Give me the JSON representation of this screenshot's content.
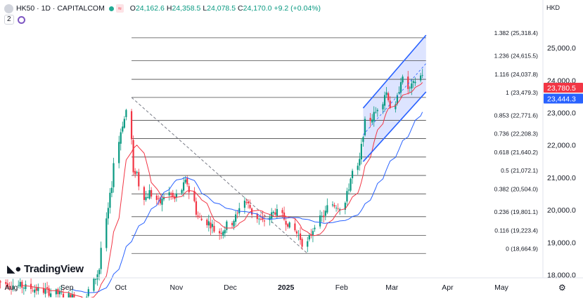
{
  "header": {
    "symbol": "HK50 · 1D · CAPITALCOM",
    "open_label": "O",
    "open": "24,162.6",
    "high_label": "H",
    "high": "24,358.5",
    "low_label": "L",
    "low": "24,078.5",
    "close_label": "C",
    "close": "24,170.0",
    "change": "+9.2 (+0.04%)",
    "indicator_count": "2",
    "currency": "HKD"
  },
  "logo": {
    "text": "TradingView"
  },
  "colors": {
    "up": "#089981",
    "down": "#f23645",
    "ma_fast": "#f23645",
    "ma_slow": "#2962ff",
    "channel": "#2962ff",
    "channel_fill": "#d4ddff",
    "fib": "#4a4a4a",
    "trend": "#787b86"
  },
  "chart_data": {
    "type": "candlestick",
    "y_axis": {
      "ticks": [
        {
          "value": 18000,
          "label": "18,000.0"
        },
        {
          "value": 19000,
          "label": "19,000.0"
        },
        {
          "value": 20000,
          "label": "20,000.0"
        },
        {
          "value": 21000,
          "label": "21,000.0"
        },
        {
          "value": 22000,
          "label": "22,000.0"
        },
        {
          "value": 23000,
          "label": "23,000.0"
        },
        {
          "value": 24000,
          "label": "24,000.0"
        },
        {
          "value": 25000,
          "label": "25,000.0"
        }
      ]
    },
    "x_axis": {
      "ticks": [
        {
          "label": "Aug",
          "x": "2024-08-01",
          "bold": false
        },
        {
          "label": "Sep",
          "x": "2024-09-01",
          "bold": false
        },
        {
          "label": "Oct",
          "x": "2024-10-01",
          "bold": false
        },
        {
          "label": "Nov",
          "x": "2024-11-01",
          "bold": false
        },
        {
          "label": "Dec",
          "x": "2024-12-01",
          "bold": false
        },
        {
          "label": "2025",
          "x": "2025-01-01",
          "bold": true
        },
        {
          "label": "Feb",
          "x": "2025-02-01",
          "bold": false
        },
        {
          "label": "Mar",
          "x": "2025-03-01",
          "bold": false
        },
        {
          "label": "Apr",
          "x": "2025-04-01",
          "bold": false
        },
        {
          "label": "May",
          "x": "2025-05-01",
          "bold": false
        }
      ]
    },
    "price_labels": [
      {
        "value": 23780.5,
        "label": "23,780.5",
        "color": "#f23645"
      },
      {
        "value": 23444.3,
        "label": "23,444.3",
        "color": "#2962ff"
      }
    ],
    "fib_levels": [
      {
        "ratio": "1.382",
        "value": 25318.4,
        "label": "1.382 (25,318.4)"
      },
      {
        "ratio": "1.236",
        "value": 24615.5,
        "label": "1.236 (24,615.5)"
      },
      {
        "ratio": "1.116",
        "value": 24037.8,
        "label": "1.116 (24,037.8)"
      },
      {
        "ratio": "1",
        "value": 23479.3,
        "label": "1 (23,479.3)"
      },
      {
        "ratio": "0.853",
        "value": 22771.6,
        "label": "0.853 (22,771.6)"
      },
      {
        "ratio": "0.736",
        "value": 22208.3,
        "label": "0.736 (22,208.3)"
      },
      {
        "ratio": "0.618",
        "value": 21640.2,
        "label": "0.618 (21,640.2)"
      },
      {
        "ratio": "0.5",
        "value": 21072.1,
        "label": "0.5 (21,072.1)"
      },
      {
        "ratio": "0.382",
        "value": 20504.0,
        "label": "0.382 (20,504.0)"
      },
      {
        "ratio": "0.236",
        "value": 19801.1,
        "label": "0.236 (19,801.1)"
      },
      {
        "ratio": "0.116",
        "value": 19223.4,
        "label": "0.116 (19,223.4)"
      },
      {
        "ratio": "0",
        "value": 18664.9,
        "label": "0 (18,664.9)"
      }
    ],
    "fib_range": {
      "start": "2024-10-07",
      "end": "2025-03-20"
    },
    "trendline": {
      "from": {
        "x": "2024-10-07",
        "y": 23479
      },
      "to": {
        "x": "2025-01-13",
        "y": 18665
      }
    },
    "channel": {
      "lower": [
        {
          "x": "2025-02-13",
          "y": 21500
        },
        {
          "x": "2025-03-20",
          "y": 23650
        }
      ],
      "upper": [
        {
          "x": "2025-02-13",
          "y": 23150
        },
        {
          "x": "2025-03-20",
          "y": 25400
        }
      ],
      "mid": [
        {
          "x": "2025-02-13",
          "y": 22325
        },
        {
          "x": "2025-03-20",
          "y": 24525
        }
      ]
    },
    "anchors": [
      {
        "x": "2024-07-25",
        "y": 17800
      },
      {
        "x": "2024-08-30",
        "y": 17400
      },
      {
        "x": "2024-09-12",
        "y": 17200
      },
      {
        "x": "2024-09-20",
        "y": 18250
      },
      {
        "x": "2024-09-27",
        "y": 21000
      },
      {
        "x": "2024-10-02",
        "y": 22600
      },
      {
        "x": "2024-10-07",
        "y": 23300
      },
      {
        "x": "2024-10-08",
        "y": 21000
      },
      {
        "x": "2024-10-10",
        "y": 21250
      },
      {
        "x": "2024-10-15",
        "y": 20350
      },
      {
        "x": "2024-10-18",
        "y": 20600
      },
      {
        "x": "2024-10-23",
        "y": 20200
      },
      {
        "x": "2024-10-28",
        "y": 20550
      },
      {
        "x": "2024-11-01",
        "y": 20300
      },
      {
        "x": "2024-11-07",
        "y": 20900
      },
      {
        "x": "2024-11-11",
        "y": 20400
      },
      {
        "x": "2024-11-13",
        "y": 19800
      },
      {
        "x": "2024-11-20",
        "y": 19600
      },
      {
        "x": "2024-11-25",
        "y": 19300
      },
      {
        "x": "2024-12-02",
        "y": 19600
      },
      {
        "x": "2024-12-06",
        "y": 19900
      },
      {
        "x": "2024-12-09",
        "y": 20350
      },
      {
        "x": "2024-12-11",
        "y": 20200
      },
      {
        "x": "2024-12-16",
        "y": 19800
      },
      {
        "x": "2024-12-20",
        "y": 19600
      },
      {
        "x": "2024-12-27",
        "y": 20000
      },
      {
        "x": "2025-01-02",
        "y": 19650
      },
      {
        "x": "2025-01-06",
        "y": 19400
      },
      {
        "x": "2025-01-10",
        "y": 19100
      },
      {
        "x": "2025-01-13",
        "y": 18900
      },
      {
        "x": "2025-01-17",
        "y": 19500
      },
      {
        "x": "2025-01-22",
        "y": 19800
      },
      {
        "x": "2025-01-27",
        "y": 20200
      },
      {
        "x": "2025-02-03",
        "y": 20100
      },
      {
        "x": "2025-02-07",
        "y": 21100
      },
      {
        "x": "2025-02-11",
        "y": 21300
      },
      {
        "x": "2025-02-14",
        "y": 22600
      },
      {
        "x": "2025-02-19",
        "y": 22900
      },
      {
        "x": "2025-02-24",
        "y": 23300
      },
      {
        "x": "2025-02-26",
        "y": 23700
      },
      {
        "x": "2025-03-03",
        "y": 23000
      },
      {
        "x": "2025-03-05",
        "y": 23600
      },
      {
        "x": "2025-03-07",
        "y": 24200
      },
      {
        "x": "2025-03-11",
        "y": 23700
      },
      {
        "x": "2025-03-14",
        "y": 23900
      },
      {
        "x": "2025-03-18",
        "y": 24170
      }
    ]
  }
}
